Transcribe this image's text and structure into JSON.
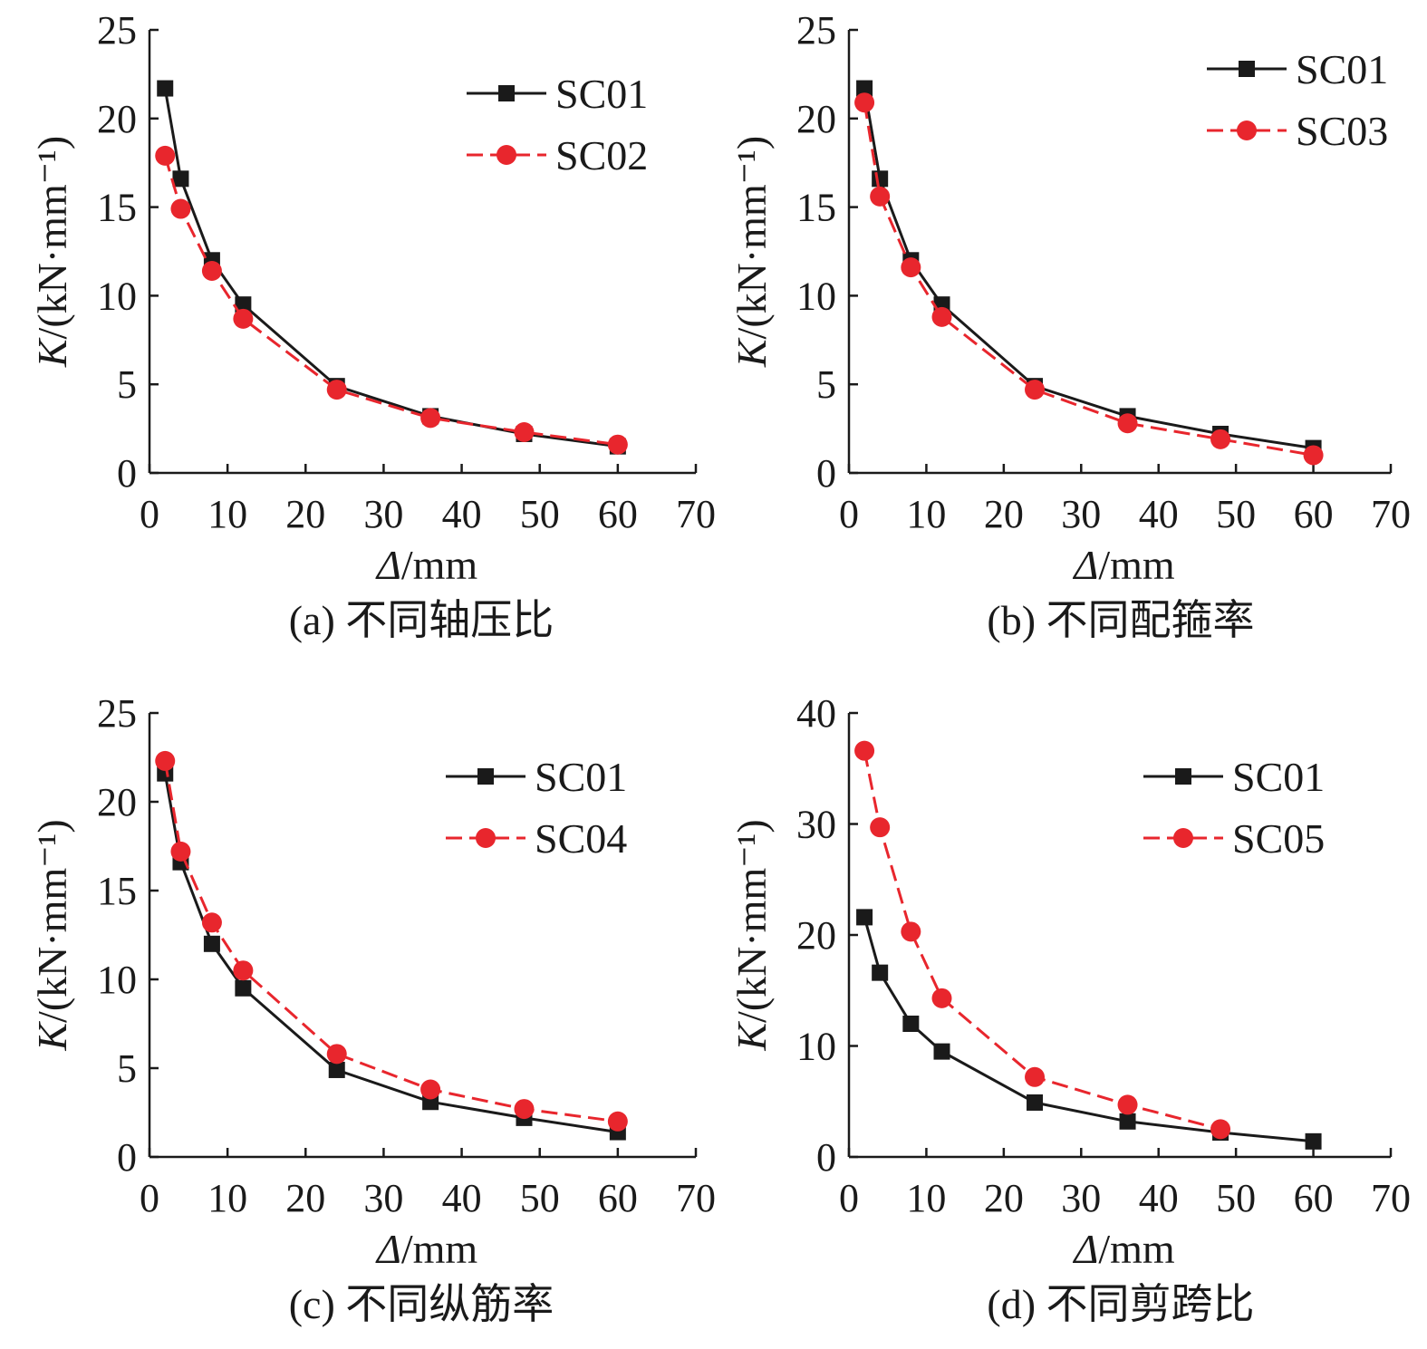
{
  "colors": {
    "series1": "#1a1a1a",
    "series2": "#e8262d",
    "axis": "#1a1a1a"
  },
  "chart_data": [
    {
      "type": "line",
      "caption": "(a) 不同轴压比",
      "xlabel_italic": "Δ",
      "xlabel_unit": "/mm",
      "ylabel_italic": "K",
      "ylabel_unit": "/(kN·mm⁻¹)",
      "xlim": [
        0,
        70
      ],
      "ylim": [
        0,
        25
      ],
      "xticks": [
        0,
        10,
        20,
        30,
        40,
        50,
        60,
        70
      ],
      "yticks": [
        0,
        5,
        10,
        15,
        20,
        25
      ],
      "legend_position": "top-right",
      "grid": false,
      "series": [
        {
          "name": "SC01",
          "style": "solid-square",
          "x": [
            2,
            4,
            8,
            12,
            24,
            36,
            48,
            60
          ],
          "y": [
            21.7,
            16.6,
            12.0,
            9.5,
            4.9,
            3.2,
            2.2,
            1.5
          ]
        },
        {
          "name": "SC02",
          "style": "dashed-circle",
          "x": [
            2,
            4,
            8,
            12,
            24,
            36,
            48,
            60
          ],
          "y": [
            17.9,
            14.9,
            11.4,
            8.7,
            4.7,
            3.1,
            2.3,
            1.6
          ]
        }
      ]
    },
    {
      "type": "line",
      "caption": "(b) 不同配箍率",
      "xlabel_italic": "Δ",
      "xlabel_unit": "/mm",
      "ylabel_italic": "K",
      "ylabel_unit": "/(kN·mm⁻¹)",
      "xlim": [
        0,
        70
      ],
      "ylim": [
        0,
        25
      ],
      "xticks": [
        0,
        10,
        20,
        30,
        40,
        50,
        60,
        70
      ],
      "yticks": [
        0,
        5,
        10,
        15,
        20,
        25
      ],
      "legend_position": "top-right",
      "grid": false,
      "series": [
        {
          "name": "SC01",
          "style": "solid-square",
          "x": [
            2,
            4,
            8,
            12,
            24,
            36,
            48,
            60
          ],
          "y": [
            21.7,
            16.6,
            12.0,
            9.5,
            4.9,
            3.2,
            2.2,
            1.4
          ]
        },
        {
          "name": "SC03",
          "style": "dashed-circle",
          "x": [
            2,
            4,
            8,
            12,
            24,
            36,
            48,
            60
          ],
          "y": [
            20.9,
            15.6,
            11.6,
            8.8,
            4.7,
            2.8,
            1.9,
            1.0
          ]
        }
      ]
    },
    {
      "type": "line",
      "caption": "(c) 不同纵筋率",
      "xlabel_italic": "Δ",
      "xlabel_unit": "/mm",
      "ylabel_italic": "K",
      "ylabel_unit": "/(kN·mm⁻¹)",
      "xlim": [
        0,
        70
      ],
      "ylim": [
        0,
        25
      ],
      "xticks": [
        0,
        10,
        20,
        30,
        40,
        50,
        60,
        70
      ],
      "yticks": [
        0,
        5,
        10,
        15,
        20,
        25
      ],
      "legend_position": "top-right",
      "grid": false,
      "series": [
        {
          "name": "SC01",
          "style": "solid-square",
          "x": [
            2,
            4,
            8,
            12,
            24,
            36,
            48,
            60
          ],
          "y": [
            21.6,
            16.6,
            12.0,
            9.5,
            4.9,
            3.1,
            2.2,
            1.4
          ]
        },
        {
          "name": "SC04",
          "style": "dashed-circle",
          "x": [
            2,
            4,
            8,
            12,
            24,
            36,
            48,
            60
          ],
          "y": [
            22.3,
            17.2,
            13.2,
            10.5,
            5.8,
            3.8,
            2.7,
            2.0
          ]
        }
      ]
    },
    {
      "type": "line",
      "caption": "(d) 不同剪跨比",
      "xlabel_italic": "Δ",
      "xlabel_unit": "/mm",
      "ylabel_italic": "K",
      "ylabel_unit": "/(kN·mm⁻¹)",
      "xlim": [
        0,
        70
      ],
      "ylim": [
        0,
        40
      ],
      "xticks": [
        0,
        10,
        20,
        30,
        40,
        50,
        60,
        70
      ],
      "yticks": [
        0,
        10,
        20,
        30,
        40
      ],
      "legend_position": "top-right",
      "grid": false,
      "series": [
        {
          "name": "SC01",
          "style": "solid-square",
          "x": [
            2,
            4,
            8,
            12,
            24,
            36,
            48,
            60
          ],
          "y": [
            21.6,
            16.6,
            12.0,
            9.5,
            4.9,
            3.2,
            2.2,
            1.4
          ]
        },
        {
          "name": "SC05",
          "style": "dashed-circle",
          "x": [
            2,
            4,
            8,
            12,
            24,
            36,
            48
          ],
          "y": [
            36.6,
            29.7,
            20.3,
            14.3,
            7.2,
            4.7,
            2.5
          ]
        }
      ]
    }
  ]
}
